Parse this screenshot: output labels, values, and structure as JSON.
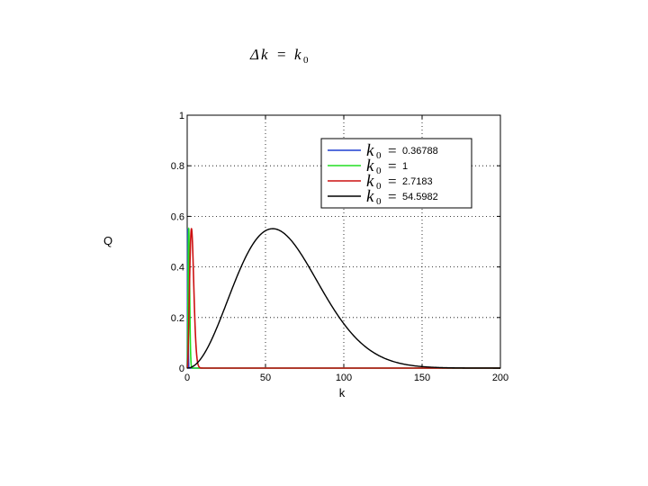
{
  "chart_data": {
    "type": "line",
    "title": {
      "delta": "Δ",
      "k": "k",
      "equals": "=",
      "k0": "k",
      "sub": "0"
    },
    "xlabel": "k",
    "ylabel": "Q",
    "xlim": [
      0,
      200
    ],
    "ylim": [
      0,
      1
    ],
    "xticks": [
      0,
      50,
      100,
      150,
      200
    ],
    "yticks": [
      0,
      0.2,
      0.4,
      0.6,
      0.8,
      1
    ],
    "grid": true,
    "legend_position": "top-right",
    "series": [
      {
        "name": "k0 = 0.36788",
        "k0": 0.36788,
        "color": "#1f3fd0",
        "symbol": "k",
        "sub": "0",
        "eq": "=",
        "value_label": "0.36788"
      },
      {
        "name": "k0 = 1",
        "k0": 1,
        "color": "#22dd22",
        "symbol": "k",
        "sub": "0",
        "eq": "=",
        "value_label": "1"
      },
      {
        "name": "k0 = 2.7183",
        "k0": 2.7183,
        "color": "#cc1111",
        "symbol": "k",
        "sub": "0",
        "eq": "=",
        "value_label": "2.7183"
      },
      {
        "name": "k0 = 54.5982",
        "k0": 54.5982,
        "color": "#000000",
        "symbol": "k",
        "sub": "0",
        "eq": "=",
        "value_label": "54.5982"
      }
    ]
  }
}
